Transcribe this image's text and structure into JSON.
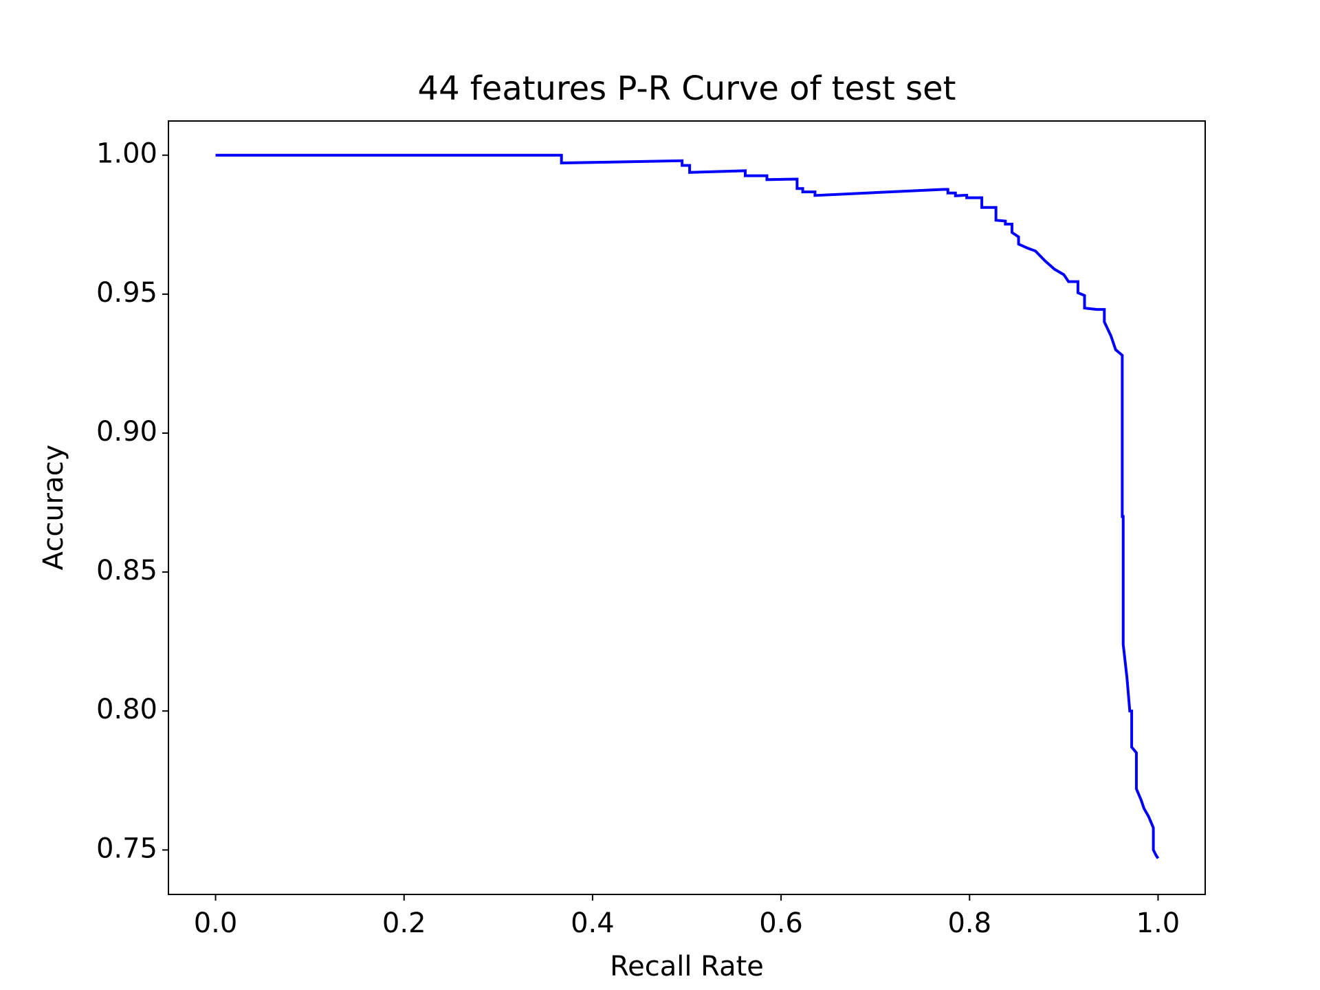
{
  "chart_data": {
    "type": "line",
    "title": "44 features P-R Curve of test set",
    "xlabel": "Recall Rate",
    "ylabel": "Accuracy",
    "xlim": [
      -0.05,
      1.05
    ],
    "ylim": [
      0.734,
      1.0123
    ],
    "xticks": [
      {
        "value": 0,
        "label": "0.0"
      },
      {
        "value": 0.2,
        "label": "0.2"
      },
      {
        "value": 0.4,
        "label": "0.4"
      },
      {
        "value": 0.6,
        "label": "0.6"
      },
      {
        "value": 0.8,
        "label": "0.8"
      },
      {
        "value": 1,
        "label": "1.0"
      }
    ],
    "yticks": [
      {
        "value": 0.75,
        "label": "0.75"
      },
      {
        "value": 0.8,
        "label": "0.80"
      },
      {
        "value": 0.85,
        "label": "0.85"
      },
      {
        "value": 0.9,
        "label": "0.90"
      },
      {
        "value": 0.95,
        "label": "0.95"
      },
      {
        "value": 1,
        "label": "1.00"
      }
    ],
    "grid": false,
    "series": [
      {
        "color": "#0000ff",
        "x": [
          0,
          0.367,
          0.367,
          0.495,
          0.495,
          0.503,
          0.503,
          0.562,
          0.562,
          0.585,
          0.585,
          0.617,
          0.617,
          0.623,
          0.623,
          0.636,
          0.636,
          0.772,
          0.777,
          0.777,
          0.785,
          0.785,
          0.797,
          0.797,
          0.813,
          0.813,
          0.828,
          0.828,
          0.838,
          0.838,
          0.845,
          0.845,
          0.852,
          0.852,
          0.862,
          0.87,
          0.88,
          0.89,
          0.9,
          0.905,
          0.915,
          0.915,
          0.922,
          0.922,
          0.935,
          0.943,
          0.943,
          0.95,
          0.955,
          0.962,
          0.962,
          0.962,
          0.963,
          0.963,
          0.967,
          0.97,
          0.972,
          0.972,
          0.977,
          0.977,
          0.982,
          0.985,
          0.99,
          0.995,
          0.995,
          0.998,
          1.0
        ],
        "values": [
          1.0,
          1.0,
          0.9972,
          0.998,
          0.9963,
          0.9963,
          0.9938,
          0.9944,
          0.9926,
          0.9926,
          0.9912,
          0.9914,
          0.988,
          0.988,
          0.9868,
          0.9868,
          0.9855,
          0.9877,
          0.9877,
          0.9864,
          0.9864,
          0.9854,
          0.9856,
          0.9847,
          0.9847,
          0.9812,
          0.9812,
          0.9766,
          0.9763,
          0.9752,
          0.9752,
          0.9722,
          0.9706,
          0.968,
          0.9665,
          0.9655,
          0.962,
          0.959,
          0.957,
          0.9545,
          0.9545,
          0.9505,
          0.9495,
          0.945,
          0.9445,
          0.9445,
          0.94,
          0.935,
          0.93,
          0.928,
          0.925,
          0.87,
          0.87,
          0.824,
          0.812,
          0.8,
          0.8,
          0.787,
          0.785,
          0.772,
          0.768,
          0.765,
          0.762,
          0.758,
          0.75,
          0.748,
          0.747
        ]
      }
    ]
  }
}
